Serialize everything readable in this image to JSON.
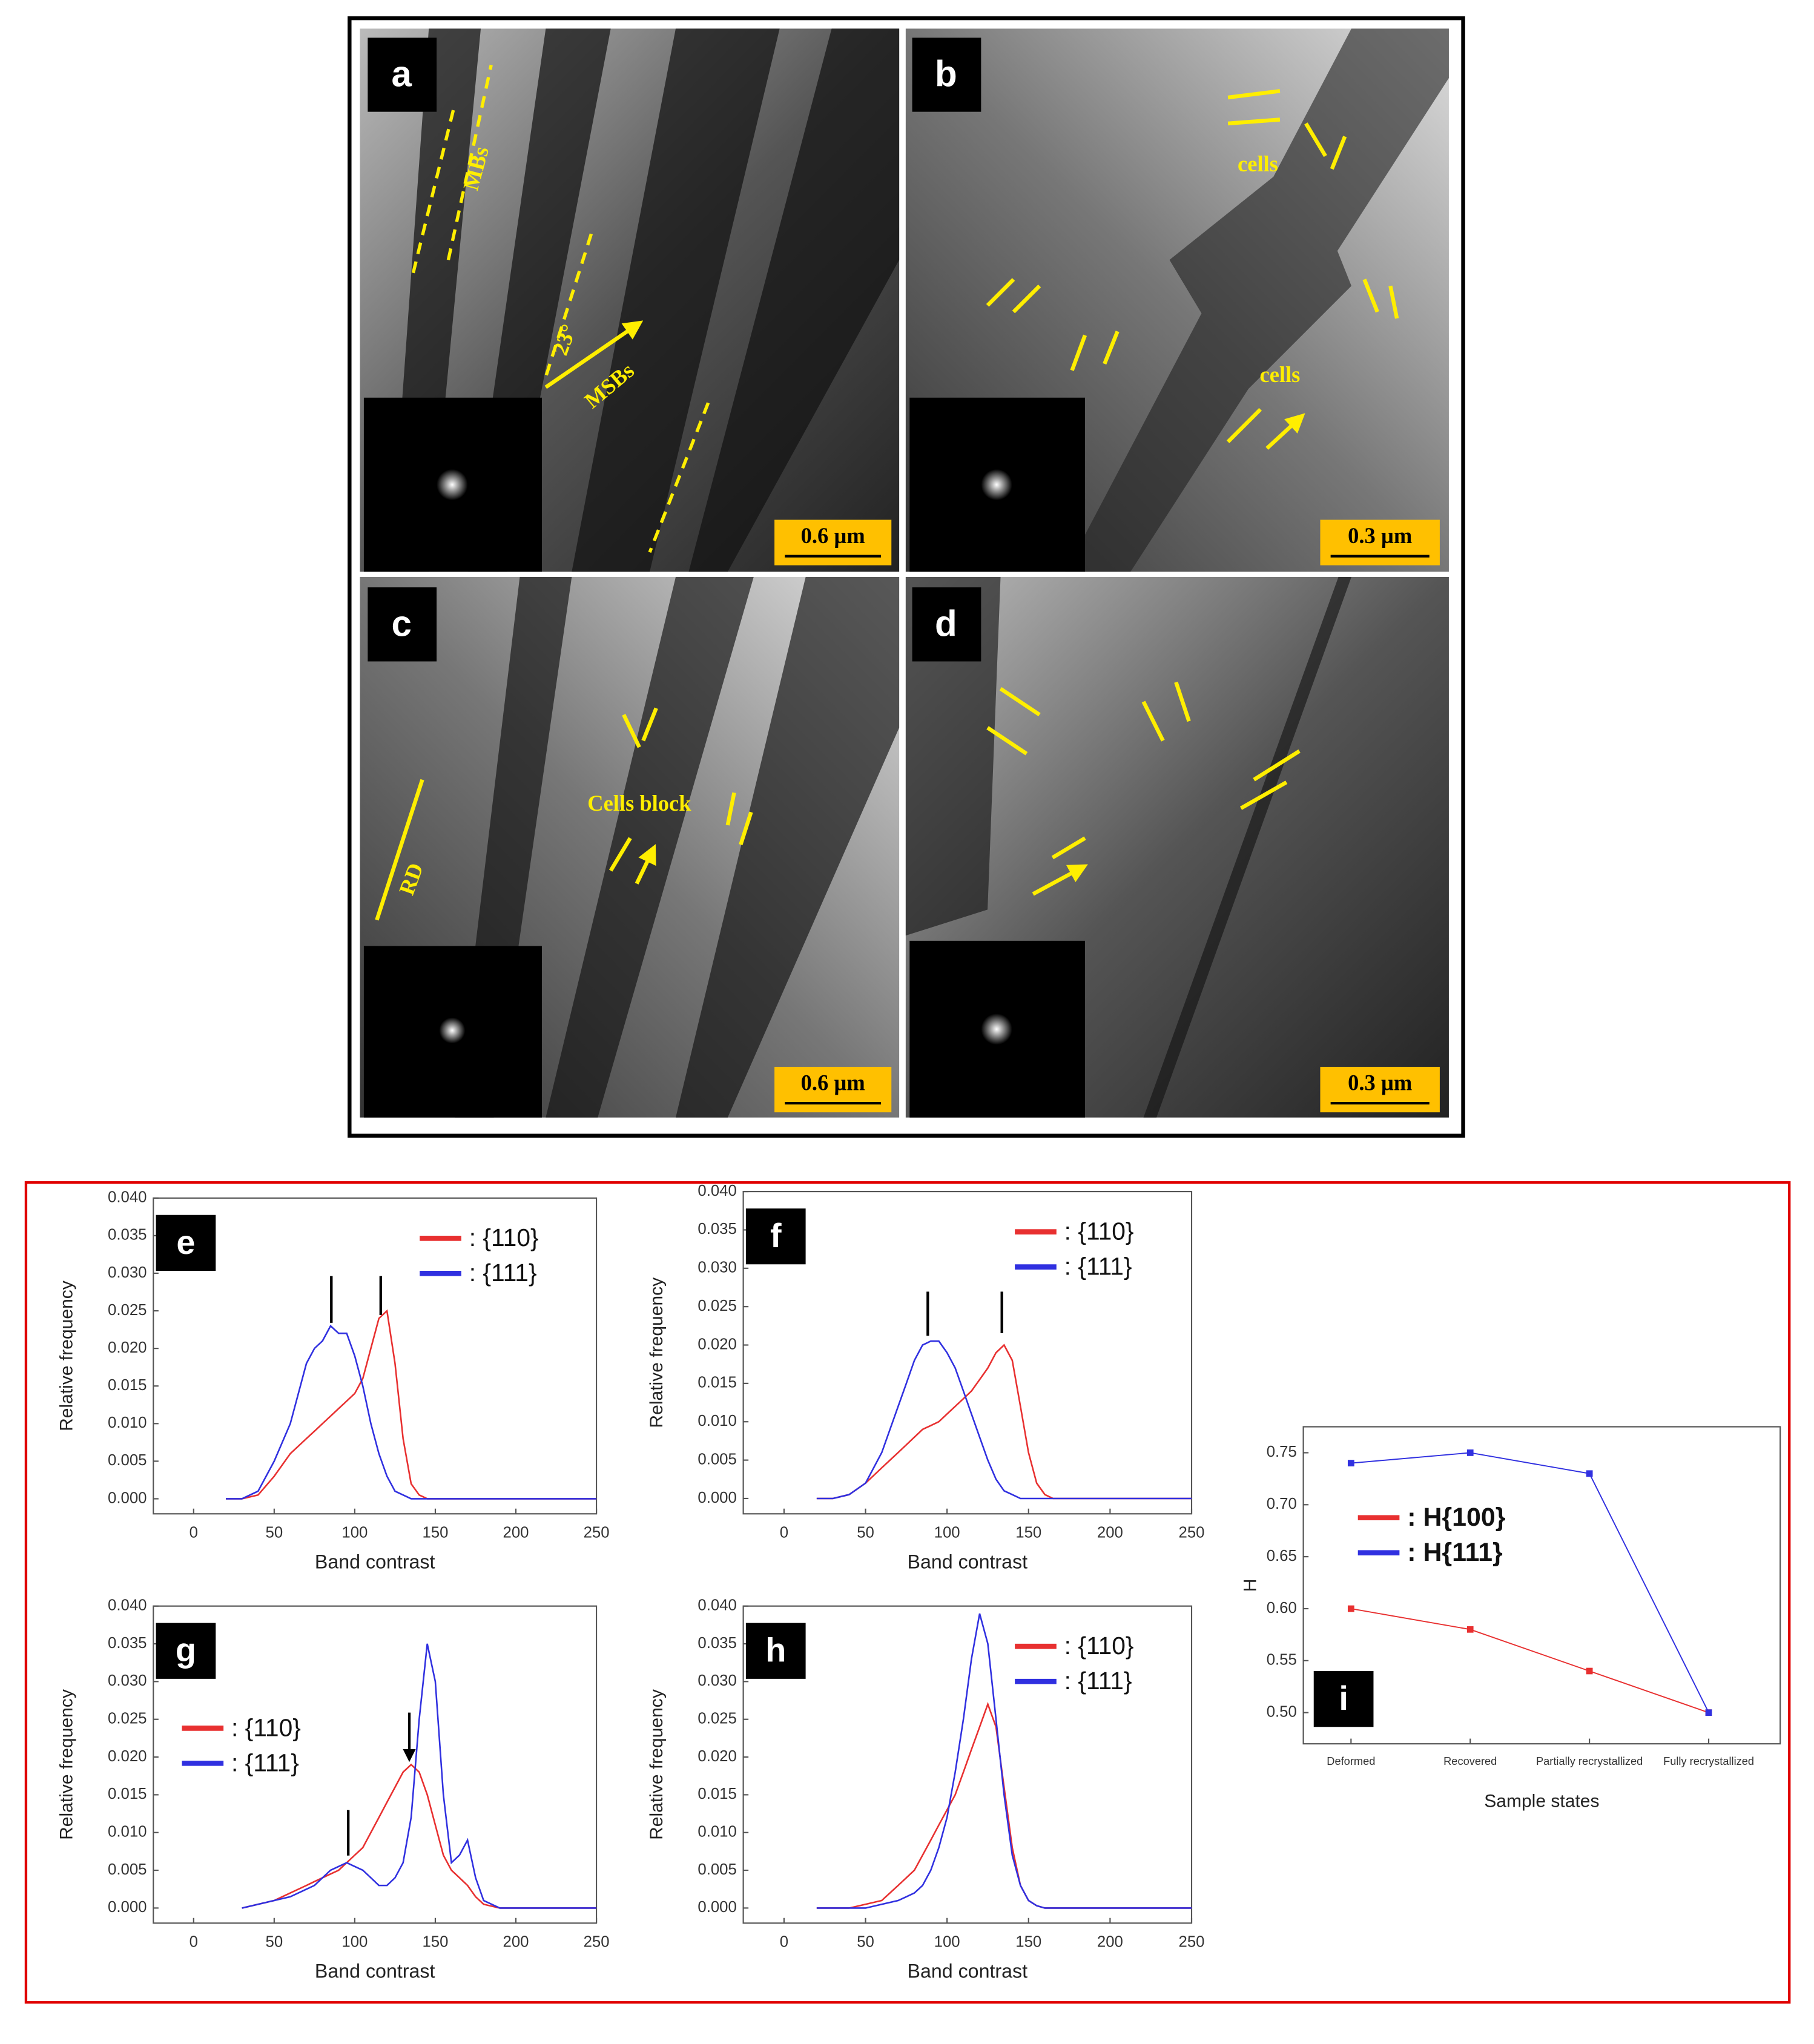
{
  "micrographs": [
    {
      "label": "a",
      "scale_bar": "0.6 µm",
      "annotations": [
        "MBs",
        "23°",
        "MSBs"
      ]
    },
    {
      "label": "b",
      "scale_bar": "0.3 µm",
      "annotations": [
        "cells",
        "cells"
      ]
    },
    {
      "label": "c",
      "scale_bar": "0.6 µm",
      "annotations": [
        "Cells block",
        "RD"
      ]
    },
    {
      "label": "d",
      "scale_bar": "0.3 µm"
    }
  ],
  "chart_data": [
    {
      "type": "line",
      "label": "e",
      "xlabel": "Band contrast",
      "ylabel": "Relative frequency",
      "legend": "upper right",
      "x": [
        20,
        30,
        40,
        50,
        60,
        70,
        75,
        80,
        85,
        90,
        95,
        100,
        105,
        110,
        115,
        120,
        125,
        130,
        135,
        140,
        145,
        150,
        155,
        160,
        165,
        170,
        175,
        180,
        190,
        200,
        250
      ],
      "series": [
        {
          "name": ": {110}",
          "color": "#e83030",
          "values": [
            0,
            0,
            0.0005,
            0.003,
            0.006,
            0.008,
            0.009,
            0.01,
            0.011,
            0.012,
            0.013,
            0.014,
            0.016,
            0.02,
            0.024,
            0.025,
            0.018,
            0.008,
            0.002,
            0.0005,
            0,
            0,
            0,
            0,
            0,
            0,
            0,
            0,
            0,
            0,
            0
          ]
        },
        {
          "name": ": {111}",
          "color": "#3030e0",
          "values": [
            0,
            0,
            0.001,
            0.005,
            0.01,
            0.018,
            0.02,
            0.021,
            0.023,
            0.022,
            0.022,
            0.019,
            0.015,
            0.01,
            0.006,
            0.003,
            0.001,
            0.0005,
            0,
            0,
            0,
            0,
            0,
            0,
            0,
            0,
            0,
            0,
            0,
            0,
            0
          ]
        }
      ],
      "xlim": [
        -25,
        250
      ],
      "xticks": [
        0,
        50,
        100,
        150,
        200,
        250
      ],
      "ylim": [
        -0.002,
        0.04
      ],
      "yticks": [
        {
          "value": 0,
          "label": "0.000"
        },
        0.005,
        {
          "value": 0.01,
          "label": "0.010"
        },
        0.015,
        {
          "value": 0.02,
          "label": "0.020"
        },
        0.025,
        {
          "value": 0.03,
          "label": "0.030"
        },
        0.035,
        {
          "value": 0.04,
          "label": "0.040"
        }
      ]
    },
    {
      "type": "line",
      "label": "f",
      "xlabel": "Band contrast",
      "ylabel": "Relative frequency",
      "legend": "upper right",
      "x": [
        20,
        30,
        40,
        50,
        60,
        70,
        75,
        80,
        85,
        90,
        95,
        100,
        105,
        110,
        115,
        120,
        125,
        130,
        135,
        140,
        145,
        150,
        155,
        160,
        165,
        170,
        175,
        180,
        190,
        200,
        250
      ],
      "series": [
        {
          "name": ": {110}",
          "color": "#e83030",
          "values": [
            0,
            0,
            0.0005,
            0.002,
            0.004,
            0.006,
            0.007,
            0.008,
            0.009,
            0.0095,
            0.01,
            0.011,
            0.012,
            0.013,
            0.014,
            0.0155,
            0.017,
            0.019,
            0.02,
            0.018,
            0.012,
            0.006,
            0.002,
            0.0005,
            0,
            0,
            0,
            0,
            0,
            0,
            0
          ]
        },
        {
          "name": ": {111}",
          "color": "#3030e0",
          "values": [
            0,
            0,
            0.0005,
            0.002,
            0.006,
            0.012,
            0.015,
            0.018,
            0.02,
            0.0205,
            0.0205,
            0.019,
            0.017,
            0.014,
            0.011,
            0.008,
            0.005,
            0.0025,
            0.001,
            0.0005,
            0,
            0,
            0,
            0,
            0,
            0,
            0,
            0,
            0,
            0,
            0
          ]
        }
      ],
      "xlim": [
        -25,
        250
      ],
      "xticks": [
        0,
        50,
        100,
        150,
        200,
        250
      ],
      "ylim": [
        -0.002,
        0.04
      ],
      "yticks": [
        {
          "value": 0,
          "label": "0.000"
        },
        0.005,
        {
          "value": 0.01,
          "label": "0.010"
        },
        0.015,
        {
          "value": 0.02,
          "label": "0.020"
        },
        0.025,
        {
          "value": 0.03,
          "label": "0.030"
        },
        0.035,
        {
          "value": 0.04,
          "label": "0.040"
        }
      ]
    },
    {
      "type": "line",
      "label": "g",
      "xlabel": "Band contrast",
      "ylabel": "Relative frequency",
      "legend": "center left",
      "x": [
        20,
        30,
        40,
        50,
        60,
        70,
        75,
        80,
        85,
        90,
        95,
        100,
        105,
        110,
        115,
        120,
        125,
        130,
        135,
        140,
        145,
        150,
        155,
        160,
        165,
        170,
        175,
        180,
        190,
        200,
        250
      ],
      "series": [
        {
          "name": ": {110}",
          "color": "#e83030",
          "values": [
            null,
            0,
            0.0005,
            0.001,
            0.002,
            0.003,
            0.0035,
            0.004,
            0.0045,
            0.005,
            0.006,
            0.007,
            0.008,
            0.01,
            0.012,
            0.014,
            0.016,
            0.018,
            0.019,
            0.018,
            0.015,
            0.011,
            0.007,
            0.005,
            0.004,
            0.003,
            0.0015,
            0.0005,
            0,
            0,
            0
          ]
        },
        {
          "name": ": {111}",
          "color": "#3030e0",
          "values": [
            null,
            0,
            0.0005,
            0.001,
            0.0015,
            0.0025,
            0.003,
            0.004,
            0.005,
            0.0055,
            0.006,
            0.0055,
            0.005,
            0.004,
            0.003,
            0.003,
            0.004,
            0.006,
            0.012,
            0.025,
            0.035,
            0.03,
            0.015,
            0.006,
            0.007,
            0.009,
            0.004,
            0.001,
            0,
            0,
            0
          ]
        }
      ],
      "xlim": [
        -25,
        250
      ],
      "xticks": [
        0,
        50,
        100,
        150,
        200,
        250
      ],
      "ylim": [
        -0.002,
        0.04
      ],
      "yticks": [
        {
          "value": 0,
          "label": "0.000"
        },
        0.005,
        {
          "value": 0.01,
          "label": "0.010"
        },
        0.015,
        {
          "value": 0.02,
          "label": "0.020"
        },
        0.025,
        {
          "value": 0.03,
          "label": "0.030"
        },
        0.035,
        {
          "value": 0.04,
          "label": "0.040"
        }
      ]
    },
    {
      "type": "line",
      "label": "h",
      "xlabel": "Band contrast",
      "ylabel": "Relative frequency",
      "legend": "upper right",
      "x": [
        20,
        30,
        40,
        50,
        60,
        70,
        75,
        80,
        85,
        90,
        95,
        100,
        105,
        110,
        115,
        120,
        125,
        130,
        135,
        140,
        145,
        150,
        155,
        160,
        165,
        170,
        175,
        180,
        190,
        200,
        250
      ],
      "series": [
        {
          "name": ": {110}",
          "color": "#e83030",
          "values": [
            0,
            0,
            0,
            0.0005,
            0.001,
            0.003,
            0.004,
            0.005,
            0.007,
            0.009,
            0.011,
            0.013,
            0.015,
            0.018,
            0.021,
            0.024,
            0.027,
            0.024,
            0.016,
            0.008,
            0.003,
            0.001,
            0.0003,
            0,
            0,
            0,
            0,
            0,
            0,
            0,
            0
          ]
        },
        {
          "name": ": {111}",
          "color": "#3030e0",
          "values": [
            0,
            0,
            0,
            0,
            0.0005,
            0.001,
            0.0015,
            0.002,
            0.003,
            0.005,
            0.008,
            0.012,
            0.018,
            0.025,
            0.033,
            0.039,
            0.035,
            0.025,
            0.015,
            0.007,
            0.003,
            0.001,
            0.0003,
            0,
            0,
            0,
            0,
            0,
            0,
            0,
            0
          ]
        }
      ],
      "xlim": [
        -25,
        250
      ],
      "xticks": [
        0,
        50,
        100,
        150,
        200,
        250
      ],
      "ylim": [
        -0.002,
        0.04
      ],
      "yticks": [
        {
          "value": 0,
          "label": "0.000"
        },
        0.005,
        {
          "value": 0.01,
          "label": "0.010"
        },
        0.015,
        {
          "value": 0.02,
          "label": "0.020"
        },
        0.025,
        {
          "value": 0.03,
          "label": "0.030"
        },
        0.035,
        {
          "value": 0.04,
          "label": "0.040"
        }
      ]
    },
    {
      "type": "category-line",
      "label": "i",
      "xlabel": "Sample states",
      "ylabel": "H",
      "legend": "center left",
      "categories": [
        "Deformed",
        "Recovered",
        "Partially recrystallized",
        "Fully recrystallized"
      ],
      "series": [
        {
          "name": ": H{100}",
          "color": "#e83030",
          "values": [
            0.6,
            0.58,
            0.54,
            0.5
          ]
        },
        {
          "name": ": H{111}",
          "color": "#3030e0",
          "values": [
            0.74,
            0.75,
            0.73,
            0.5
          ]
        }
      ],
      "ylim": [
        0.47,
        0.775
      ],
      "yticks": [
        {
          "value": 0.5,
          "label": "0.50"
        },
        0.55,
        {
          "value": 0.6,
          "label": "0.60"
        },
        0.65,
        {
          "value": 0.7,
          "label": "0.70"
        },
        0.75
      ]
    }
  ]
}
